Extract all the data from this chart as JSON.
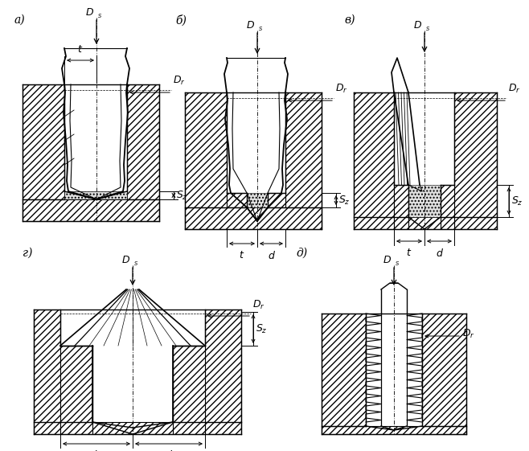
{
  "bg_color": "#ffffff",
  "line_color": "#000000",
  "figsize": [
    6.58,
    5.61
  ],
  "dpi": 100,
  "labels": [
    "а)",
    "б)",
    "в)",
    "г)",
    "д)"
  ]
}
